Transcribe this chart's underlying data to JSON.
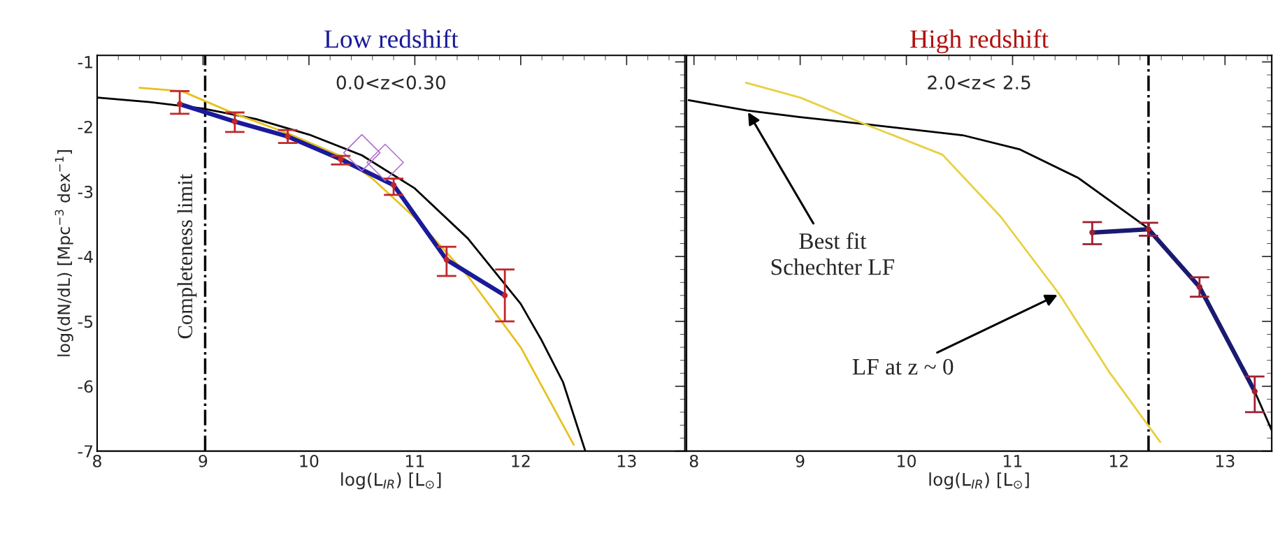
{
  "chart_data": [
    {
      "type": "line",
      "title": "Low redshift",
      "xlabel": "log(L$_{IR}$) [L$_{⊙}$]",
      "ylabel": "log(dN/dL) [Mpc$^{−3}$ dex$^{−1}$]",
      "xlim": [
        8,
        13.55
      ],
      "ylim": [
        -7,
        -0.9
      ],
      "xticks": [
        8,
        9,
        10,
        11,
        12,
        13
      ],
      "yticks": [
        -1,
        -2,
        -3,
        -4,
        -5,
        -6,
        -7
      ],
      "grid": false,
      "line_style": "solid",
      "series": [
        {
          "color": "#000000",
          "x": [
            8,
            8.5,
            9,
            9.5,
            10,
            10.5,
            11,
            11.5,
            12,
            12.2,
            12.4,
            12.61
          ],
          "values": [
            -1.55,
            -1.62,
            -1.72,
            -1.88,
            -2.12,
            -2.44,
            -2.95,
            -3.72,
            -4.73,
            -5.3,
            -5.94,
            -7.0
          ]
        },
        {
          "color": "#e8c020",
          "x": [
            8.4,
            8.8,
            9.3,
            9.8,
            10.3,
            10.6,
            11,
            11.5,
            12,
            12.5
          ],
          "values": [
            -1.4,
            -1.45,
            -1.8,
            -2.1,
            -2.45,
            -2.8,
            -3.4,
            -4.3,
            -5.4,
            -6.9
          ]
        },
        {
          "color": "#1a1a9a",
          "x": [
            8.78,
            9.3,
            9.8,
            10.3,
            10.8,
            11.3,
            11.85
          ],
          "values": [
            -1.65,
            -1.92,
            -2.15,
            -2.5,
            -2.9,
            -4.05,
            -4.6
          ]
        },
        {
          "type": "scatter",
          "color": "#c0282a",
          "marker": "circle",
          "x": [
            8.78,
            9.3,
            9.8,
            10.3,
            10.8,
            11.3,
            11.85
          ],
          "values": [
            -1.65,
            -1.92,
            -2.15,
            -2.5,
            -2.9,
            -4.05,
            -4.6
          ],
          "errors": [
            [
              -1.8,
              -1.45
            ],
            [
              -2.08,
              -1.78
            ],
            [
              -2.25,
              -2.05
            ],
            [
              -2.58,
              -2.45
            ],
            [
              -3.05,
              -2.8
            ],
            [
              -4.3,
              -3.85
            ],
            [
              -5.0,
              -4.2
            ]
          ]
        },
        {
          "type": "scatter",
          "color": "#b070d0",
          "marker": "diamond",
          "x": [
            10.5,
            10.72
          ],
          "values": [
            -2.4,
            -2.55
          ]
        }
      ],
      "ref_lines": [
        {
          "axis": "x",
          "value": 9.02,
          "label": "Completeness limit",
          "line_style": "dashdot",
          "color": "#000000"
        }
      ],
      "annotations": [
        "0.0<z<0.30"
      ]
    },
    {
      "type": "line",
      "title": "High redshift",
      "xlabel": "log(L$_{IR}$) [L$_{⊙}$]",
      "xlim": [
        7.93,
        13.44
      ],
      "ylim": [
        -7,
        -0.9
      ],
      "xticks": [
        8,
        9,
        10,
        11,
        12,
        13
      ],
      "yticks": [
        -1,
        -2,
        -3,
        -4,
        -5,
        -6,
        -7
      ],
      "tick_labels": "x",
      "grid": false,
      "line_style": "solid",
      "series": [
        {
          "color": "#000000",
          "x": [
            7.95,
            8.5,
            9.0,
            9.61,
            10.53,
            11.07,
            11.62,
            12.28,
            12.76,
            13.28,
            13.44
          ],
          "values": [
            -1.59,
            -1.75,
            -1.85,
            -1.96,
            -2.13,
            -2.35,
            -2.79,
            -3.57,
            -4.47,
            -6.08,
            -6.68
          ]
        },
        {
          "color": "#e8d040",
          "x": [
            8.49,
            9.0,
            9.61,
            10.34,
            10.89,
            11.44,
            11.91,
            12.39
          ],
          "values": [
            -1.32,
            -1.55,
            -1.96,
            -2.43,
            -3.39,
            -4.58,
            -5.78,
            -6.86
          ]
        },
        {
          "color": "#1a1a70",
          "x": [
            11.75,
            12.28,
            12.76,
            13.28
          ],
          "values": [
            -3.63,
            -3.58,
            -4.47,
            -6.08
          ]
        },
        {
          "type": "scatter",
          "color": "#a02030",
          "marker": "circle",
          "x": [
            11.75,
            12.28,
            12.76,
            13.28
          ],
          "values": [
            -3.63,
            -3.58,
            -4.47,
            -6.08
          ],
          "errors": [
            [
              -3.81,
              -3.47
            ],
            [
              -3.68,
              -3.48
            ],
            [
              -4.62,
              -4.32
            ],
            [
              -6.4,
              -5.85
            ]
          ]
        }
      ],
      "ref_lines": [
        {
          "axis": "x",
          "value": 12.28,
          "line_style": "dashdot",
          "color": "#000000"
        }
      ],
      "annotations": [
        "2.0<z< 2.5",
        {
          "text": "Best fit\nSchechter LF",
          "x": 8.5,
          "y": -1.75
        },
        {
          "text": "LF at z ~ 0",
          "x": 11.44,
          "y": -4.58
        }
      ]
    }
  ]
}
